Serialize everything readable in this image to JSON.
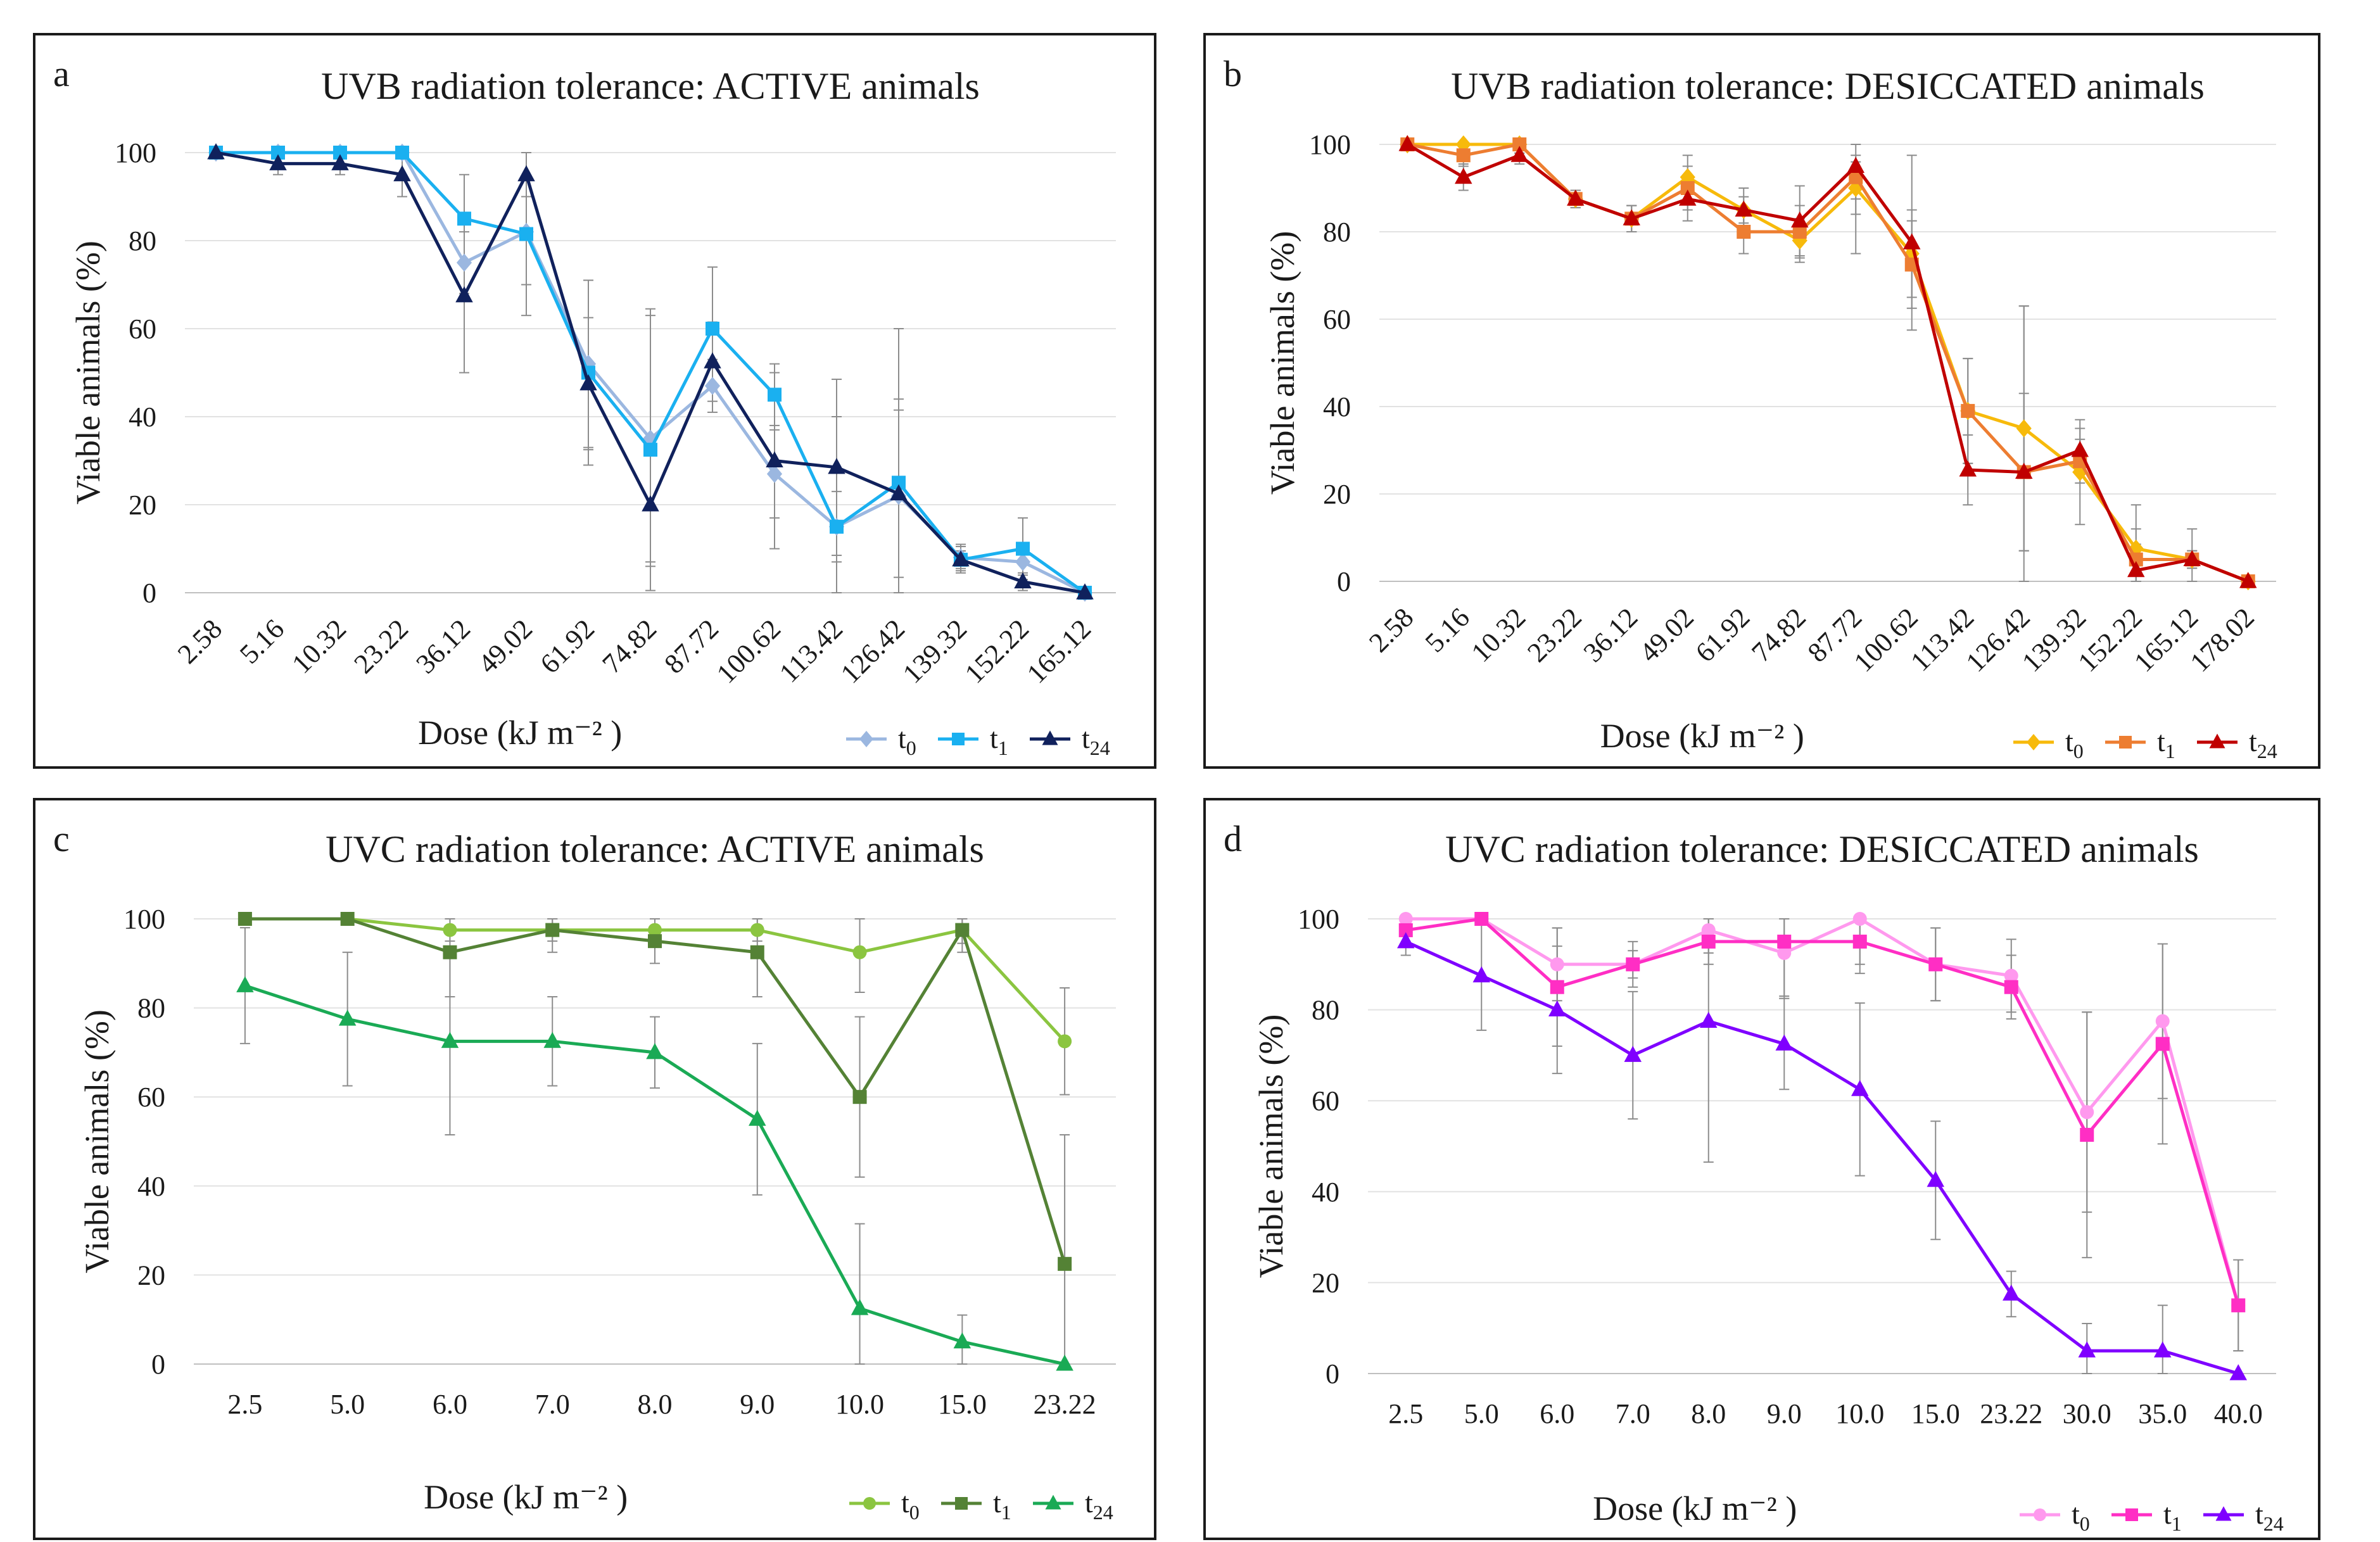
{
  "figure": {
    "chart_data": [
      {
        "panel": "a",
        "type": "line",
        "title": "UVB radiation tolerance: ACTIVE animals",
        "xlabel": "Dose (kJ m⁻² )",
        "ylabel": "Viable animals (%)",
        "ylim": [
          0,
          100
        ],
        "yticks": [
          0,
          20,
          40,
          60,
          80,
          100
        ],
        "grid": true,
        "legend_position": "bottom-right",
        "x_tick_style": "rotated",
        "categories": [
          "2.58",
          "5.16",
          "10.32",
          "23.22",
          "36.12",
          "49.02",
          "61.92",
          "74.82",
          "87.72",
          "100.62",
          "113.42",
          "126.42",
          "139.32",
          "152.22",
          "165.12"
        ],
        "series": [
          {
            "name": "t0",
            "label": "t",
            "sub": "0",
            "color": "#9bb7e0",
            "marker": "diamond",
            "values": [
              100,
              100,
              100,
              100,
              75,
              82,
              52,
              35,
              47,
              27,
              15,
              22,
              8,
              7,
              0
            ],
            "err": [
              0,
              0,
              0,
              0,
              7,
              12,
              19,
              28,
              6,
              10,
              8,
              22,
              3,
              3,
              0
            ]
          },
          {
            "name": "t1",
            "label": "t",
            "sub": "1",
            "color": "#1ab0f0",
            "marker": "square",
            "values": [
              100,
              100,
              100,
              100,
              85,
              81.5,
              50,
              32.5,
              60,
              45,
              15,
              25,
              7.5,
              10,
              0
            ],
            "err": [
              0,
              0,
              0,
              0,
              10,
              18.5,
              21,
              32,
              14,
              7,
              25,
              35,
              3,
              7,
              0
            ]
          },
          {
            "name": "t24",
            "label": "t",
            "sub": "24",
            "color": "#10215c",
            "marker": "triangle",
            "values": [
              100,
              97.5,
              97.5,
              95,
              67.5,
              95,
              47.5,
              20,
              52.5,
              30,
              28.5,
              22.5,
              7.5,
              2.5,
              0
            ],
            "err": [
              0,
              2.5,
              2.5,
              5,
              17.5,
              5,
              15,
              14,
              9,
              20,
              20,
              19,
              2,
              2,
              0
            ]
          }
        ]
      },
      {
        "panel": "b",
        "type": "line",
        "title": "UVB radiation tolerance: DESICCATED animals",
        "xlabel": "Dose (kJ m⁻² )",
        "ylabel": "Viable animals (%)",
        "ylim": [
          0,
          100
        ],
        "yticks": [
          0,
          20,
          40,
          60,
          80,
          100
        ],
        "grid": true,
        "legend_position": "bottom-right",
        "x_tick_style": "rotated",
        "categories": [
          "2.58",
          "5.16",
          "10.32",
          "23.22",
          "36.12",
          "49.02",
          "61.92",
          "74.82",
          "87.72",
          "100.62",
          "113.42",
          "126.42",
          "139.32",
          "152.22",
          "165.12",
          "178.02"
        ],
        "series": [
          {
            "name": "t0",
            "label": "t",
            "sub": "0",
            "color": "#f7ba0b",
            "marker": "diamond",
            "values": [
              100,
              100,
              100,
              87.5,
              83,
              92.5,
              85,
              78,
              90,
              75,
              39,
              35,
              25,
              7.5,
              5,
              0
            ],
            "err": [
              0,
              0,
              2,
              2,
              3,
              5,
              3,
              5,
              6,
              10,
              12,
              28,
              12,
              10,
              7,
              0
            ]
          },
          {
            "name": "t1",
            "label": "t",
            "sub": "1",
            "color": "#ed7d31",
            "marker": "square",
            "values": [
              100,
              97.5,
              100,
              87.5,
              83,
              90,
              80,
              80,
              92.5,
              72.5,
              39,
              25,
              27.5,
              5,
              5,
              0
            ],
            "err": [
              0,
              2.5,
              2,
              2,
              3,
              5,
              5,
              6,
              5,
              10,
              12,
              18,
              5,
              7,
              2,
              0
            ]
          },
          {
            "name": "t24",
            "label": "t",
            "sub": "24",
            "color": "#c00000",
            "marker": "triangle",
            "values": [
              100,
              92.5,
              97.5,
              87.5,
              83,
              87.5,
              85,
              82.5,
              95,
              77.5,
              25.5,
              25,
              30,
              2.5,
              5,
              0
            ],
            "err": [
              0,
              3,
              2,
              2,
              3,
              5,
              5,
              8,
              20,
              20,
              8,
              38,
              5,
              6,
              2,
              0
            ]
          }
        ]
      },
      {
        "panel": "c",
        "type": "line",
        "title": "UVC radiation tolerance: ACTIVE animals",
        "xlabel": "Dose (kJ m⁻² )",
        "ylabel": "Viable animals (%)",
        "ylim": [
          0,
          100
        ],
        "yticks": [
          0,
          20,
          40,
          60,
          80,
          100
        ],
        "grid": true,
        "legend_position": "bottom-right",
        "x_tick_style": "horizontal",
        "categories": [
          "2.5",
          "5.0",
          "6.0",
          "7.0",
          "8.0",
          "9.0",
          "10.0",
          "15.0",
          "23.22"
        ],
        "series": [
          {
            "name": "t0",
            "label": "t",
            "sub": "0",
            "color": "#8bc540",
            "marker": "circle",
            "values": [
              100,
              100,
              97.5,
              97.5,
              97.5,
              97.5,
              92.5,
              97.5,
              72.5
            ],
            "err": [
              0,
              0,
              2.5,
              2.5,
              2.5,
              2.5,
              9,
              3,
              12
            ]
          },
          {
            "name": "t1",
            "label": "t",
            "sub": "1",
            "color": "#548235",
            "marker": "square",
            "values": [
              100,
              100,
              92.5,
              97.5,
              95,
              92.5,
              60,
              97.5,
              22.5
            ],
            "err": [
              0,
              0,
              10,
              5,
              5,
              10,
              18,
              5,
              29
            ]
          },
          {
            "name": "t24",
            "label": "t",
            "sub": "24",
            "color": "#1aaa55",
            "marker": "triangle",
            "values": [
              85,
              77.5,
              72.5,
              72.5,
              70,
              55,
              12.5,
              5,
              0
            ],
            "err": [
              13,
              15,
              21,
              10,
              8,
              17,
              19,
              6,
              0
            ]
          }
        ]
      },
      {
        "panel": "d",
        "type": "line",
        "title": "UVC radiation tolerance: DESICCATED animals",
        "xlabel": "Dose (kJ m⁻² )",
        "ylabel": "Viable animals (%)",
        "ylim": [
          0,
          100
        ],
        "yticks": [
          0,
          20,
          40,
          60,
          80,
          100
        ],
        "grid": true,
        "legend_position": "bottom-right",
        "x_tick_style": "horizontal",
        "categories": [
          "2.5",
          "5.0",
          "6.0",
          "7.0",
          "8.0",
          "9.0",
          "10.0",
          "15.0",
          "23.22",
          "30.0",
          "35.0",
          "40.0"
        ],
        "series": [
          {
            "name": "t0",
            "label": "t",
            "sub": "0",
            "color": "#ff99ee",
            "marker": "circle",
            "values": [
              100,
              100,
              90,
              90,
              97.5,
              92.5,
              100,
              90,
              87.5,
              57.5,
              77.5,
              15
            ],
            "err": [
              3,
              0,
              8,
              5,
              5,
              10,
              10,
              8,
              8,
              22,
              17,
              10
            ]
          },
          {
            "name": "t1",
            "label": "t",
            "sub": "1",
            "color": "#ff2ec4",
            "marker": "square",
            "values": [
              97.5,
              100,
              85,
              90,
              95,
              95,
              95,
              90,
              85,
              52.5,
              72.5,
              15
            ],
            "err": [
              3,
              0,
              13,
              3,
              5,
              12,
              7,
              8,
              7,
              27,
              22,
              10
            ]
          },
          {
            "name": "t24",
            "label": "t",
            "sub": "24",
            "color": "#7f00ff",
            "marker": "triangle",
            "values": [
              95,
              87.5,
              80,
              70,
              77.5,
              72.5,
              62.5,
              42.5,
              17.5,
              5,
              5,
              0
            ],
            "err": [
              3,
              12,
              14,
              14,
              31,
              10,
              19,
              13,
              5,
              6,
              10,
              0
            ]
          }
        ]
      }
    ]
  }
}
